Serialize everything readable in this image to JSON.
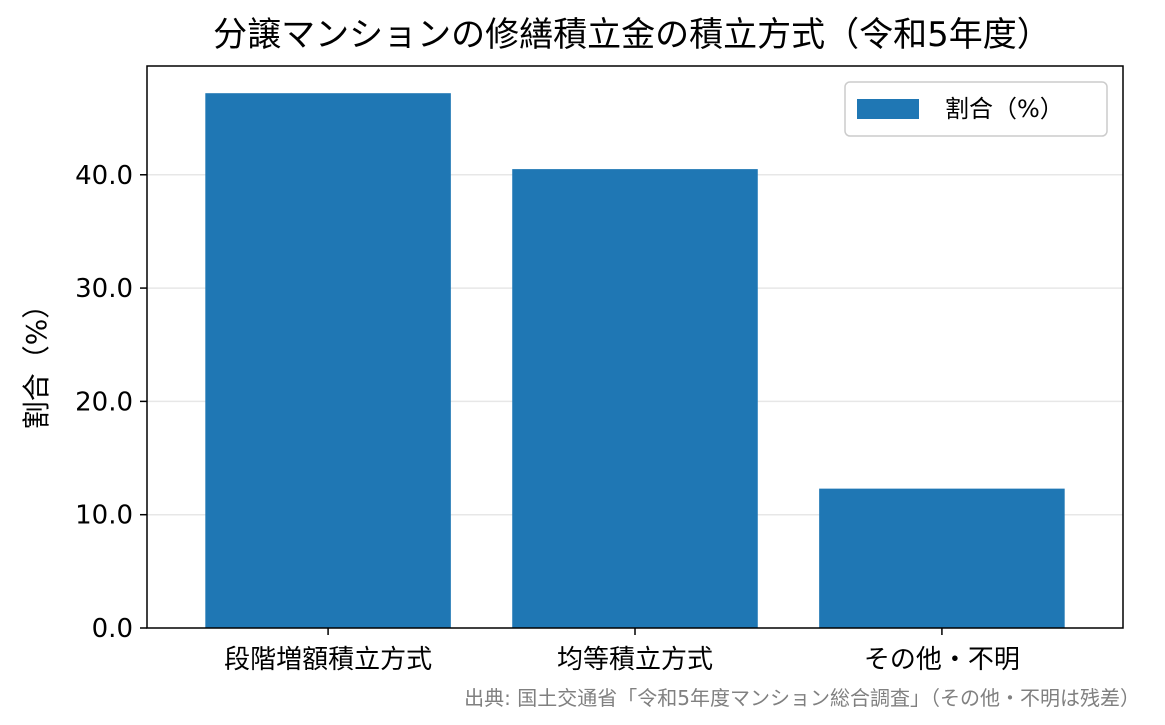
{
  "chart_data": {
    "type": "bar",
    "title": "分譲マンションの修繕積立金の積立方式（令和5年度）",
    "xlabel": "",
    "ylabel": "割合（%）",
    "categories": [
      "段階増額積立方式",
      "均等積立方式",
      "その他・不明"
    ],
    "series": [
      {
        "name": "割合（%）",
        "values": [
          47.2,
          40.5,
          12.3
        ],
        "color": "#1f77b4"
      }
    ],
    "ylim": [
      0,
      49.6
    ],
    "yticks": [
      0,
      10,
      20,
      30,
      40
    ],
    "ytick_labels": [
      "0.0",
      "10.0",
      "20.0",
      "30.0",
      "40.0"
    ],
    "grid": "horizontal",
    "legend_position": "upper right",
    "source": "出典: 国土交通省「令和5年度マンション総合調査」（その他・不明は残差）"
  }
}
